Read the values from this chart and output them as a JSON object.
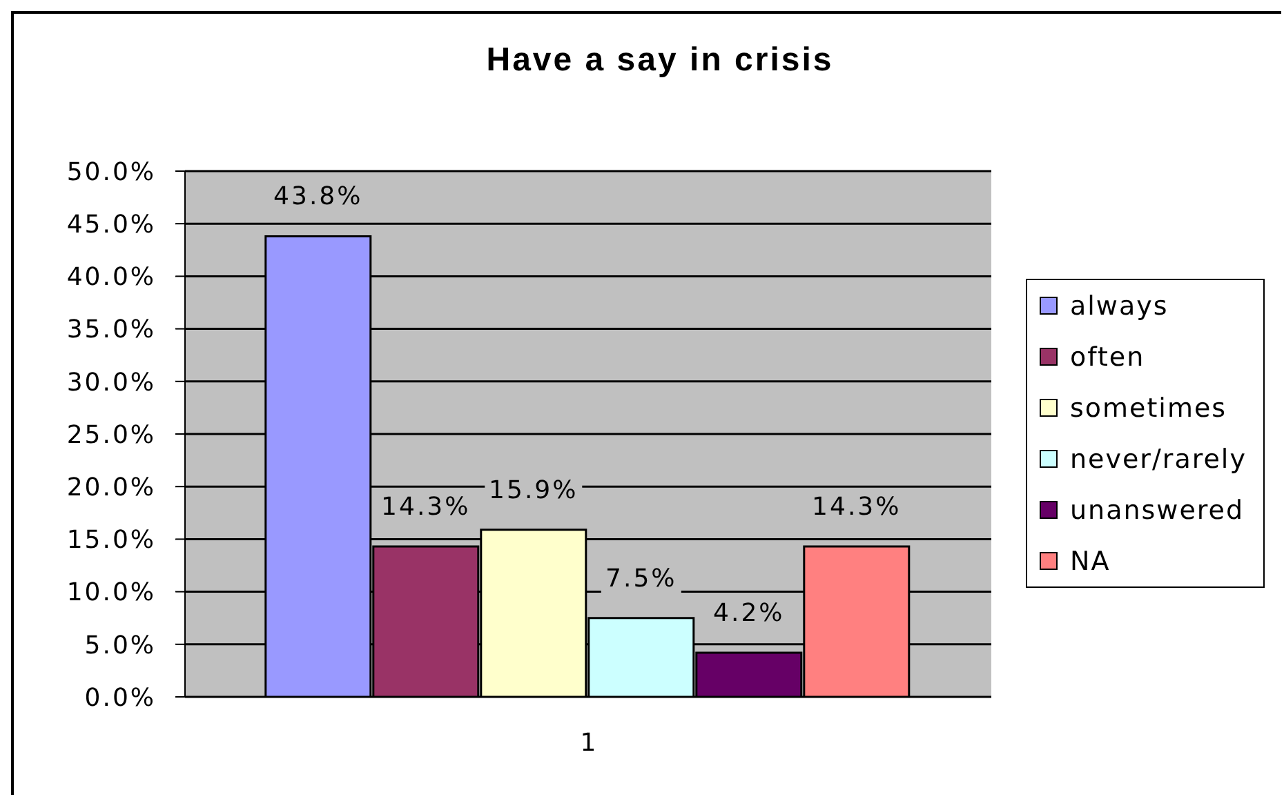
{
  "chart_data": {
    "type": "bar",
    "title": "Have a say in crisis",
    "categories": [
      "1"
    ],
    "series": [
      {
        "name": "always",
        "color": "#9999ff",
        "values": [
          43.8
        ],
        "value_labels": [
          "43.8%"
        ]
      },
      {
        "name": "often",
        "color": "#993366",
        "values": [
          14.3
        ],
        "value_labels": [
          "14.3%"
        ]
      },
      {
        "name": "sometimes",
        "color": "#ffffcc",
        "values": [
          15.9
        ],
        "value_labels": [
          "15.9%"
        ]
      },
      {
        "name": "never/rarely",
        "color": "#ccffff",
        "values": [
          7.5
        ],
        "value_labels": [
          "7.5%"
        ]
      },
      {
        "name": "unanswered",
        "color": "#660066",
        "values": [
          4.2
        ],
        "value_labels": [
          "4.2%"
        ]
      },
      {
        "name": "NA",
        "color": "#ff8080",
        "values": [
          14.3
        ],
        "value_labels": [
          "14.3%"
        ]
      }
    ],
    "ylim": [
      0,
      50
    ],
    "yticks": [
      {
        "value": 0,
        "label": "0.0%"
      },
      {
        "value": 5,
        "label": "5.0%"
      },
      {
        "value": 10,
        "label": "10.0%"
      },
      {
        "value": 15,
        "label": "15.0%"
      },
      {
        "value": 20,
        "label": "20.0%"
      },
      {
        "value": 25,
        "label": "25.0%"
      },
      {
        "value": 30,
        "label": "30.0%"
      },
      {
        "value": 35,
        "label": "35.0%"
      },
      {
        "value": 40,
        "label": "40.0%"
      },
      {
        "value": 45,
        "label": "45.0%"
      },
      {
        "value": 50,
        "label": "50.0%"
      }
    ],
    "grid": "y",
    "legend": "right"
  }
}
